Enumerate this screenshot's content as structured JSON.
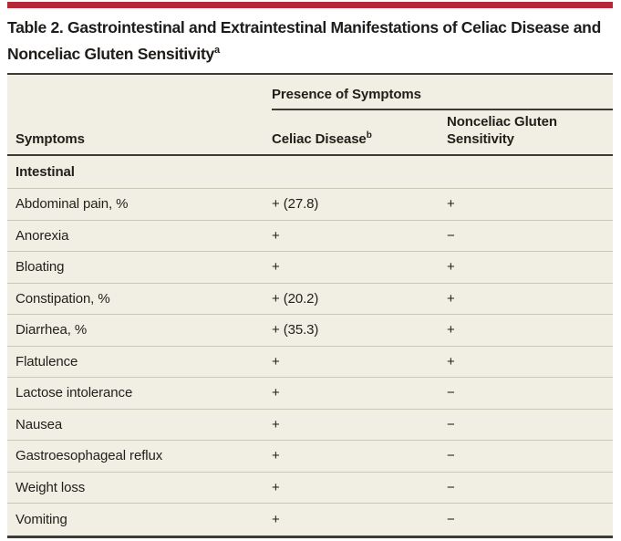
{
  "title": {
    "label": "Table 2. Gastrointestinal and Extraintestinal Manifestations of Celiac Disease and Nonceliac Gluten Sensitivity",
    "superscript": "a"
  },
  "colors": {
    "accent_red": "#b52a39",
    "table_background": "#f1efe3",
    "dark_rule": "#3c3b36",
    "row_divider": "#c9c7b6",
    "text": "#211e1b"
  },
  "table": {
    "column_group_header": "Presence of Symptoms",
    "columns": [
      {
        "label": "Symptoms",
        "superscript": ""
      },
      {
        "label": "Celiac Disease",
        "superscript": "b"
      },
      {
        "label": "Nonceliac Gluten Sensitivity",
        "superscript": ""
      }
    ],
    "section_header": "Intestinal",
    "rows": [
      {
        "symptom": "Abdominal pain, %",
        "celiac_disease": "+ (27.8)",
        "nonceliac_gluten_sensitivity": "+"
      },
      {
        "symptom": "Anorexia",
        "celiac_disease": "+",
        "nonceliac_gluten_sensitivity": "−"
      },
      {
        "symptom": "Bloating",
        "celiac_disease": "+",
        "nonceliac_gluten_sensitivity": "+"
      },
      {
        "symptom": "Constipation, %",
        "celiac_disease": "+ (20.2)",
        "nonceliac_gluten_sensitivity": "+"
      },
      {
        "symptom": "Diarrhea, %",
        "celiac_disease": "+ (35.3)",
        "nonceliac_gluten_sensitivity": "+"
      },
      {
        "symptom": "Flatulence",
        "celiac_disease": "+",
        "nonceliac_gluten_sensitivity": "+"
      },
      {
        "symptom": "Lactose intolerance",
        "celiac_disease": "+",
        "nonceliac_gluten_sensitivity": "−"
      },
      {
        "symptom": "Nausea",
        "celiac_disease": "+",
        "nonceliac_gluten_sensitivity": "−"
      },
      {
        "symptom": "Gastroesophageal reflux",
        "celiac_disease": "+",
        "nonceliac_gluten_sensitivity": "−"
      },
      {
        "symptom": "Weight loss",
        "celiac_disease": "+",
        "nonceliac_gluten_sensitivity": "−"
      },
      {
        "symptom": "Vomiting",
        "celiac_disease": "+",
        "nonceliac_gluten_sensitivity": "−"
      }
    ]
  }
}
